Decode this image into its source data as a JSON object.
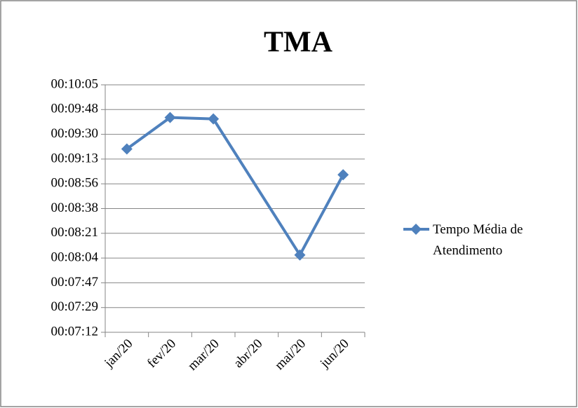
{
  "chart_data": {
    "type": "line",
    "title": "TMA",
    "categories": [
      "jan/20",
      "fev/20",
      "mar/20",
      "abr/20",
      "mai/20",
      "jun/20"
    ],
    "series": [
      {
        "name": "Tempo Média de Atendimento",
        "color": "#4f81bd",
        "values": [
          560,
          582,
          581,
          null,
          486,
          542
        ]
      }
    ],
    "span_gaps": true,
    "ylim": [
      432,
      604.8
    ],
    "yticks": [
      {
        "value": 432,
        "label": "00:07:12"
      },
      {
        "value": 449.28,
        "label": "00:07:29"
      },
      {
        "value": 466.56,
        "label": "00:07:47"
      },
      {
        "value": 483.84,
        "label": "00:08:04"
      },
      {
        "value": 501.12,
        "label": "00:08:21"
      },
      {
        "value": 518.4,
        "label": "00:08:38"
      },
      {
        "value": 535.68,
        "label": "00:08:56"
      },
      {
        "value": 552.96,
        "label": "00:09:13"
      },
      {
        "value": 570.24,
        "label": "00:09:30"
      },
      {
        "value": 587.52,
        "label": "00:09:48"
      },
      {
        "value": 604.8,
        "label": "00:10:05"
      }
    ],
    "grid": true,
    "legend": "right"
  }
}
